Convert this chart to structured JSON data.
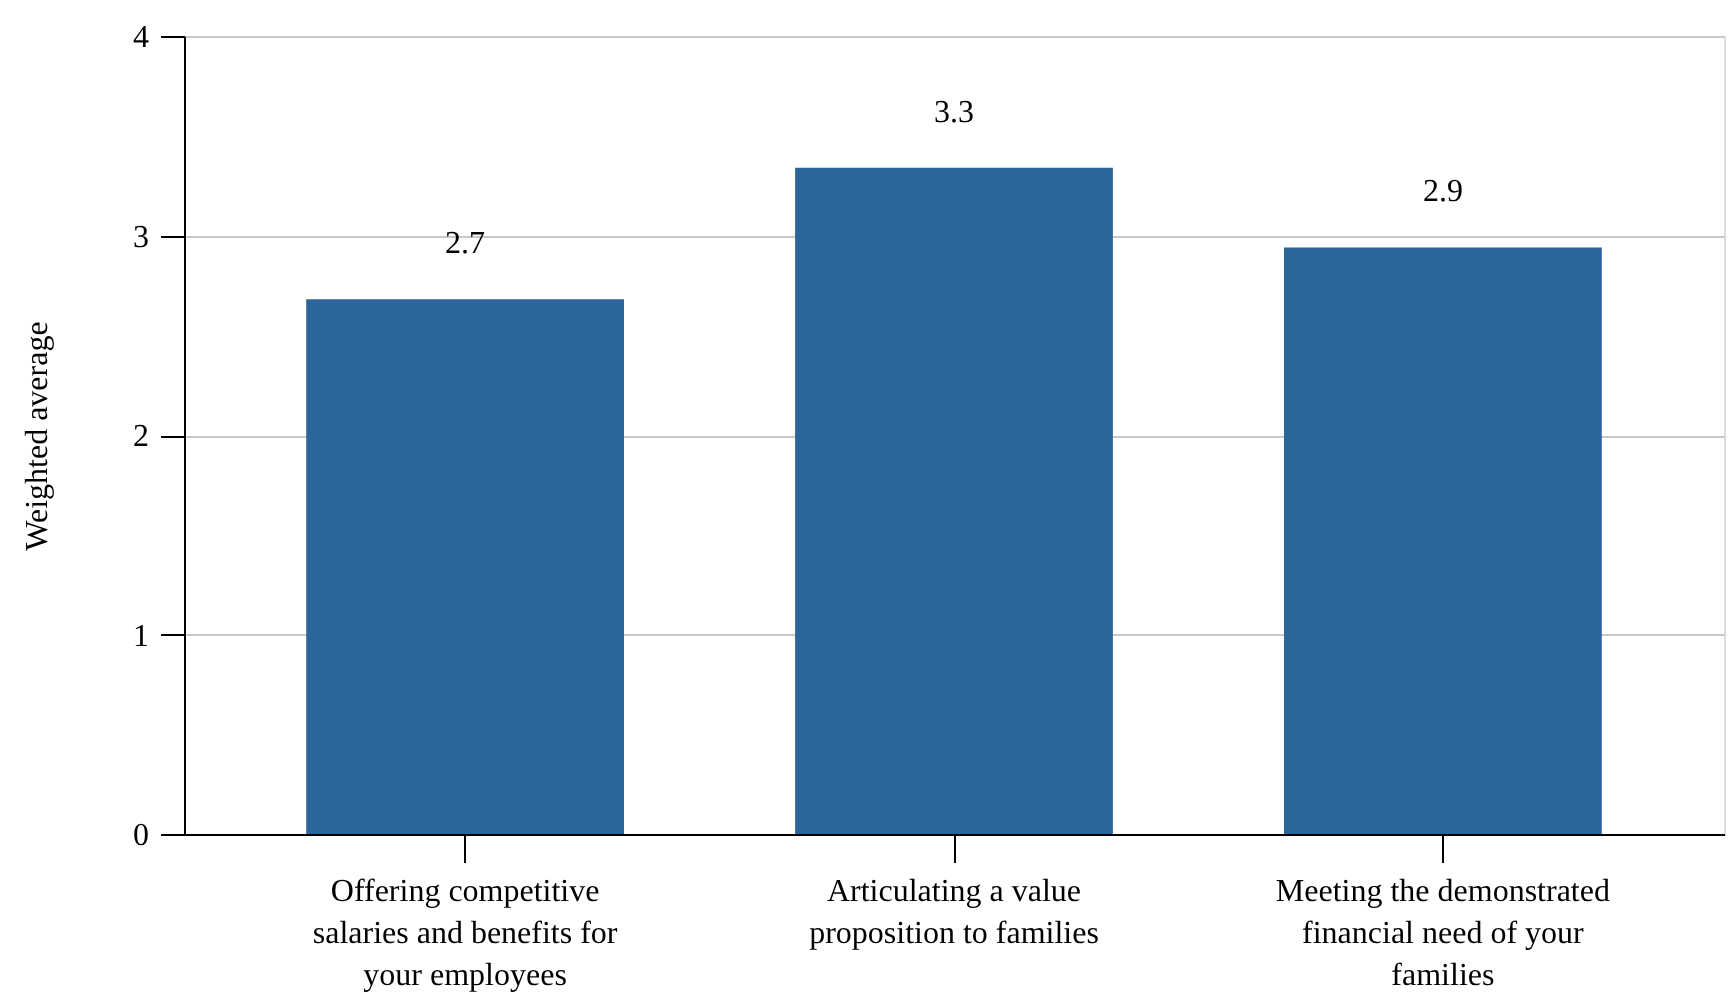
{
  "chart_data": {
    "type": "bar",
    "ylabel": "Weighted average",
    "categories": [
      "Offering competitive salaries and benefits for your employees",
      "Articulating a value proposition to families",
      "Meeting the demonstrated financial need of your families"
    ],
    "values": [
      2.68,
      3.34,
      2.94
    ],
    "value_labels": [
      "2.7",
      "3.3",
      "2.9"
    ],
    "color": "#2b6599",
    "ylim": [
      0,
      4
    ],
    "yticks": [
      0,
      1,
      2,
      3,
      4
    ],
    "grid": "y"
  }
}
